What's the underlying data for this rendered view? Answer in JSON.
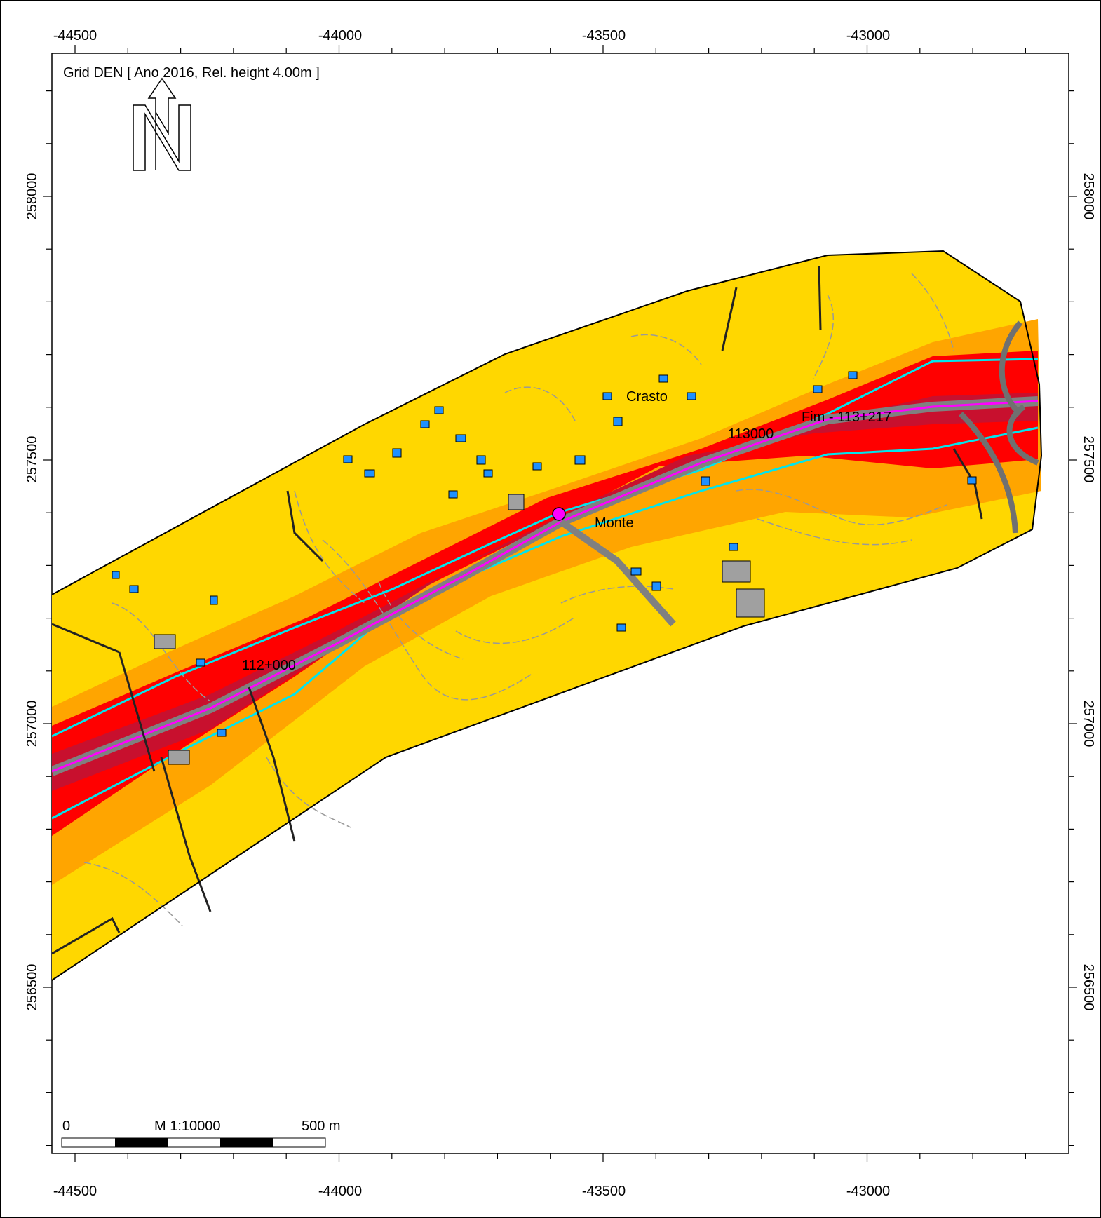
{
  "title": "Grid DEN  [ Ano 2016, Rel. height  4.00m ]",
  "x_axis": {
    "top_labels": [
      "-44500",
      "-44000",
      "-43500",
      "-43000"
    ],
    "bottom_labels": [
      "-44500",
      "-44000",
      "-43500",
      "-43000"
    ]
  },
  "y_axis": {
    "left_labels": [
      "258000",
      "257500",
      "257000",
      "256500"
    ],
    "right_labels": [
      "258000",
      "257500",
      "257000",
      "256500"
    ]
  },
  "place_labels": {
    "crasto": "Crasto",
    "monte": "Monte",
    "chainage_start": "112+000",
    "chainage_mid": "113000",
    "chainage_end": "Fim - 113+217"
  },
  "scale_bar": {
    "zero": "0",
    "scale": "M 1:10000",
    "end": "500 m"
  },
  "colors": {
    "band_outer": "#ffd700",
    "band_mid": "#ffa500",
    "band_inner": "#ff0000",
    "band_core": "#c8102e",
    "road_axis": "#ff00ff",
    "iso_line": "#00e5ee",
    "building": "#1e90ff",
    "road": "#808080"
  },
  "icons": {
    "north_arrow": "north-arrow-icon",
    "roundabout": "roundabout-marker-icon"
  }
}
